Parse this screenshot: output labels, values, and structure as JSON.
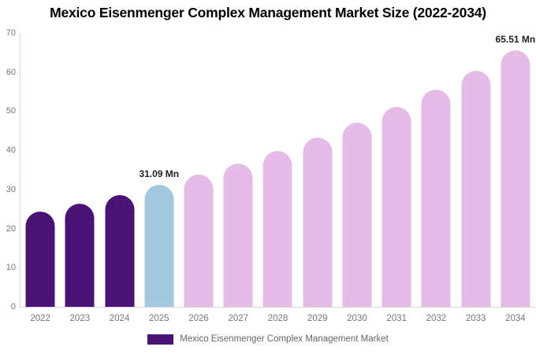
{
  "title": "Mexico Eisenmenger Complex Management Market Size (2022-2034)",
  "chart_data": {
    "type": "bar",
    "title": "Mexico Eisenmenger Complex Management Market Size (2022-2034)",
    "xlabel": "",
    "ylabel": "",
    "ylim": [
      0,
      70
    ],
    "yticks": [
      0,
      10,
      20,
      30,
      40,
      50,
      60,
      70
    ],
    "grid": false,
    "categories": [
      "2022",
      "2023",
      "2024",
      "2025",
      "2026",
      "2027",
      "2028",
      "2029",
      "2030",
      "2031",
      "2032",
      "2033",
      "2034"
    ],
    "values": [
      24.25,
      26.34,
      28.62,
      31.09,
      33.78,
      36.69,
      39.86,
      43.3,
      47.04,
      51.11,
      55.52,
      60.32,
      65.51
    ],
    "data_labels": [
      "",
      "",
      "",
      "31.09 Mn",
      "",
      "",
      "",
      "",
      "",
      "",
      "",
      "",
      "65.51 Mn"
    ],
    "bar_colors": [
      "#4A1274",
      "#4A1274",
      "#4A1274",
      "#A2C9DF",
      "#E4BCE7",
      "#E4BCE7",
      "#E4BCE7",
      "#E4BCE7",
      "#E4BCE7",
      "#E4BCE7",
      "#E4BCE7",
      "#E4BCE7",
      "#E4BCE7"
    ],
    "legend": {
      "position": "bottom",
      "items": [
        {
          "label": "Mexico Eisenmenger Complex Management Market",
          "color": "#4A1274"
        }
      ]
    }
  },
  "colors": {
    "historical_bar": "#4A1274",
    "base_year_bar": "#A2C9DF",
    "forecast_bar": "#E4BCE7",
    "axis_line": "#d6d6d6",
    "axis_text": "#777777",
    "title_text": "#000000",
    "value_label_text": "#222222",
    "legend_text": "#666666"
  }
}
